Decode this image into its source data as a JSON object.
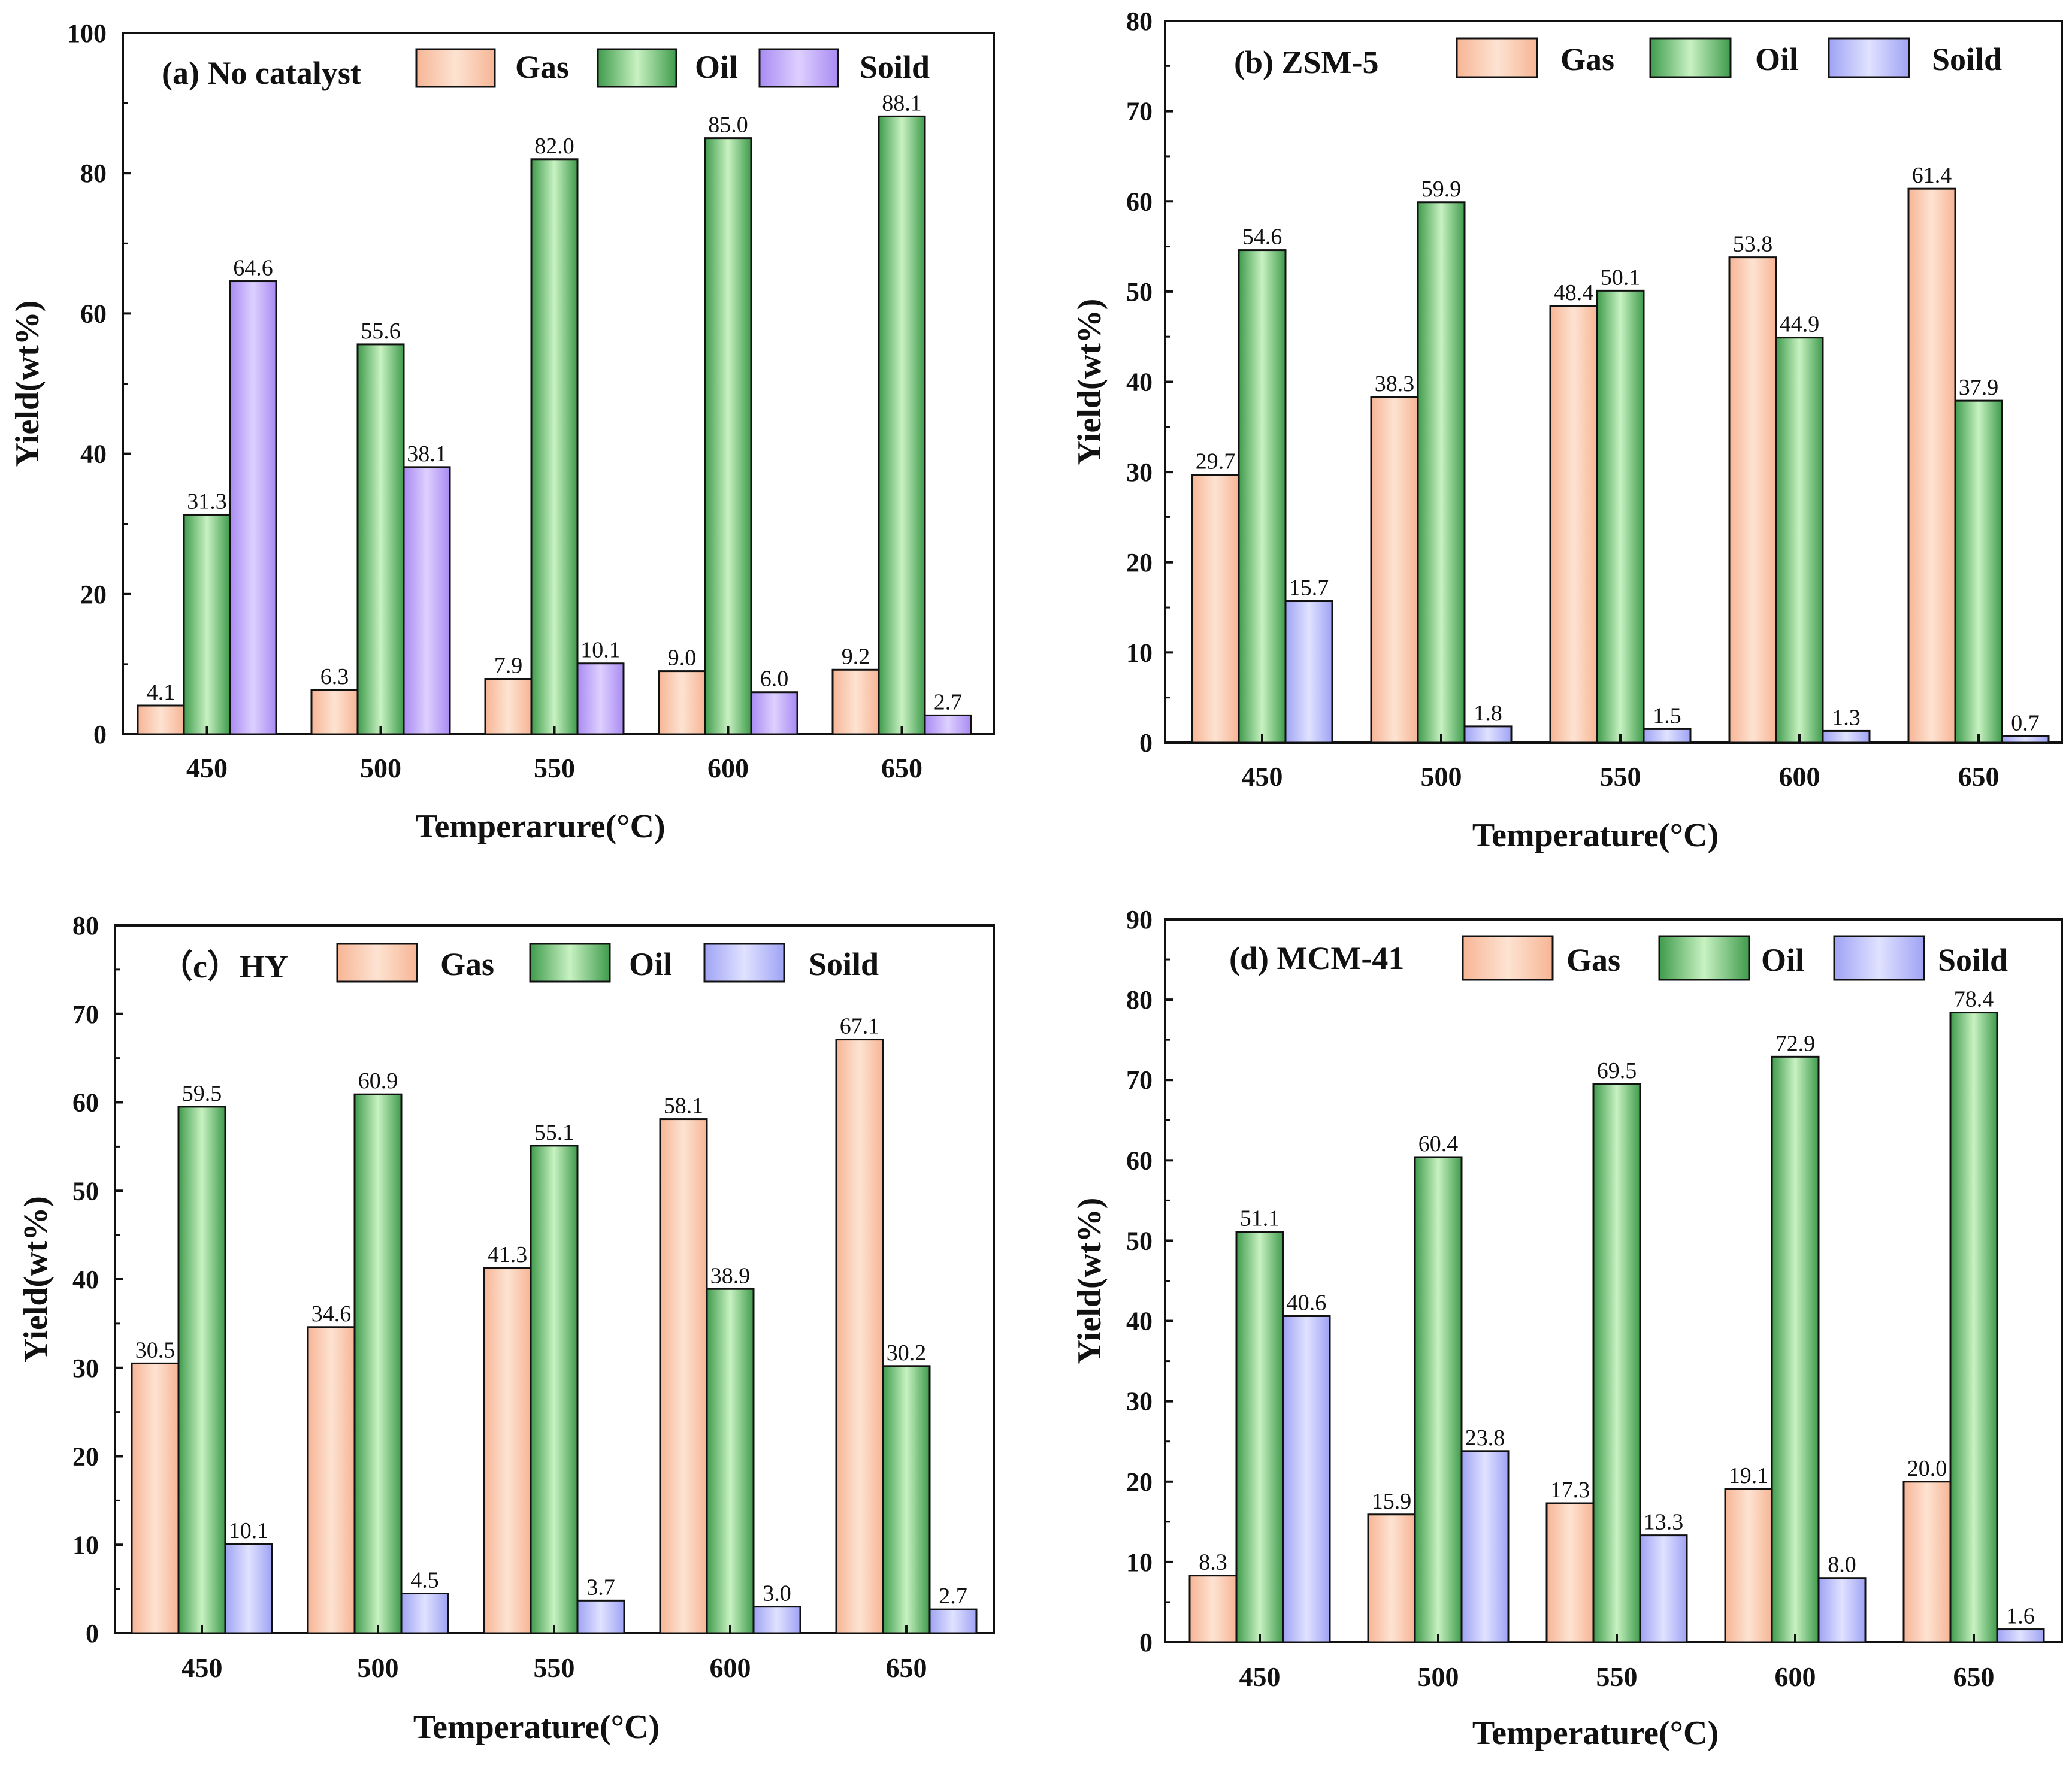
{
  "colors": {
    "gas": "#f7b595",
    "gas_light": "#fde3d2",
    "oil": "#3f9b4c",
    "oil_light": "#c8f2c2",
    "solid_a": "#a98bf2",
    "solid_light_a": "#ddd0ff",
    "solid": "#9fa3f4",
    "solid_light": "#e0e2ff",
    "stroke": "#222222"
  },
  "chart_data": [
    {
      "type": "bar",
      "title": "(a) No catalyst",
      "categories": [
        "450",
        "500",
        "550",
        "600",
        "650"
      ],
      "series": [
        {
          "name": "Gas",
          "values": [
            4.1,
            6.3,
            7.9,
            9.0,
            9.2
          ]
        },
        {
          "name": "Oil",
          "values": [
            31.3,
            55.6,
            82.0,
            85.0,
            88.1
          ]
        },
        {
          "name": "Soild",
          "values": [
            64.6,
            38.1,
            10.1,
            6.0,
            2.7
          ]
        }
      ],
      "labels": [
        [
          "4.1",
          "6.3",
          "7.9",
          "9.0",
          "9.2"
        ],
        [
          "31.3",
          "55.6",
          "82.0",
          "85.0",
          "88.1"
        ],
        [
          "64.6",
          "38.1",
          "10.1",
          "6.0",
          "2.7"
        ]
      ],
      "xlabel": "Temperarure(°C)",
      "ylabel": "Yield(wt%)",
      "ylim": [
        0,
        100
      ],
      "yticks": [
        "0",
        "20",
        "40",
        "60",
        "80",
        "100"
      ],
      "legend": [
        "Gas",
        "Oil",
        "Soild"
      ]
    },
    {
      "type": "bar",
      "title": "(b) ZSM-5",
      "categories": [
        "450",
        "500",
        "550",
        "600",
        "650"
      ],
      "series": [
        {
          "name": "Gas",
          "values": [
            29.7,
            38.3,
            48.4,
            53.8,
            61.4
          ]
        },
        {
          "name": "Oil",
          "values": [
            54.6,
            59.9,
            50.1,
            44.9,
            37.9
          ]
        },
        {
          "name": "Soild",
          "values": [
            15.7,
            1.8,
            1.5,
            1.3,
            0.7
          ]
        }
      ],
      "labels": [
        [
          "29.7",
          "38.3",
          "48.4",
          "53.8",
          "61.4"
        ],
        [
          "54.6",
          "59.9",
          "50.1",
          "44.9",
          "37.9"
        ],
        [
          "15.7",
          "1.8",
          "1.5",
          "1.3",
          "0.7"
        ]
      ],
      "xlabel": "Temperature(°C)",
      "ylabel": "Yield(wt%)",
      "ylim": [
        0,
        80
      ],
      "yticks": [
        "0",
        "10",
        "20",
        "30",
        "40",
        "50",
        "60",
        "70",
        "80"
      ],
      "legend": [
        "Gas",
        "Oil",
        "Soild"
      ]
    },
    {
      "type": "bar",
      "title": "（c）HY",
      "categories": [
        "450",
        "500",
        "550",
        "600",
        "650"
      ],
      "series": [
        {
          "name": "Gas",
          "values": [
            30.5,
            34.6,
            41.3,
            58.1,
            67.1
          ]
        },
        {
          "name": "Oil",
          "values": [
            59.5,
            60.9,
            55.1,
            38.9,
            30.2
          ]
        },
        {
          "name": "Soild",
          "values": [
            10.1,
            4.5,
            3.7,
            3.0,
            2.7
          ]
        }
      ],
      "labels": [
        [
          "30.5",
          "34.6",
          "41.3",
          "58.1",
          "67.1"
        ],
        [
          "59.5",
          "60.9",
          "55.1",
          "38.9",
          "30.2"
        ],
        [
          "10.1",
          "4.5",
          "3.7",
          "3.0",
          "2.7"
        ]
      ],
      "xlabel": "Temperature(°C)",
      "ylabel": "Yield(wt%)",
      "ylim": [
        0,
        80
      ],
      "yticks": [
        "0",
        "10",
        "20",
        "30",
        "40",
        "50",
        "60",
        "70",
        "80"
      ],
      "legend": [
        "Gas",
        "Oil",
        "Soild"
      ]
    },
    {
      "type": "bar",
      "title": "(d) MCM-41",
      "categories": [
        "450",
        "500",
        "550",
        "600",
        "650"
      ],
      "series": [
        {
          "name": "Gas",
          "values": [
            8.3,
            15.9,
            17.3,
            19.1,
            20.0
          ]
        },
        {
          "name": "Oil",
          "values": [
            51.1,
            60.4,
            69.5,
            72.9,
            78.4
          ]
        },
        {
          "name": "Soild",
          "values": [
            40.6,
            23.8,
            13.3,
            8.0,
            1.6
          ]
        }
      ],
      "labels": [
        [
          "8.3",
          "15.9",
          "17.3",
          "19.1",
          "20.0"
        ],
        [
          "51.1",
          "60.4",
          "69.5",
          "72.9",
          "78.4"
        ],
        [
          "40.6",
          "23.8",
          "13.3",
          "8.0",
          "1.6"
        ]
      ],
      "xlabel": "Temperature(°C)",
      "ylabel": "Yield(wt%)",
      "ylim": [
        0,
        90
      ],
      "yticks": [
        "0",
        "10",
        "20",
        "30",
        "40",
        "50",
        "60",
        "70",
        "80",
        "90"
      ],
      "legend": [
        "Gas",
        "Oil",
        "Soild"
      ]
    }
  ]
}
